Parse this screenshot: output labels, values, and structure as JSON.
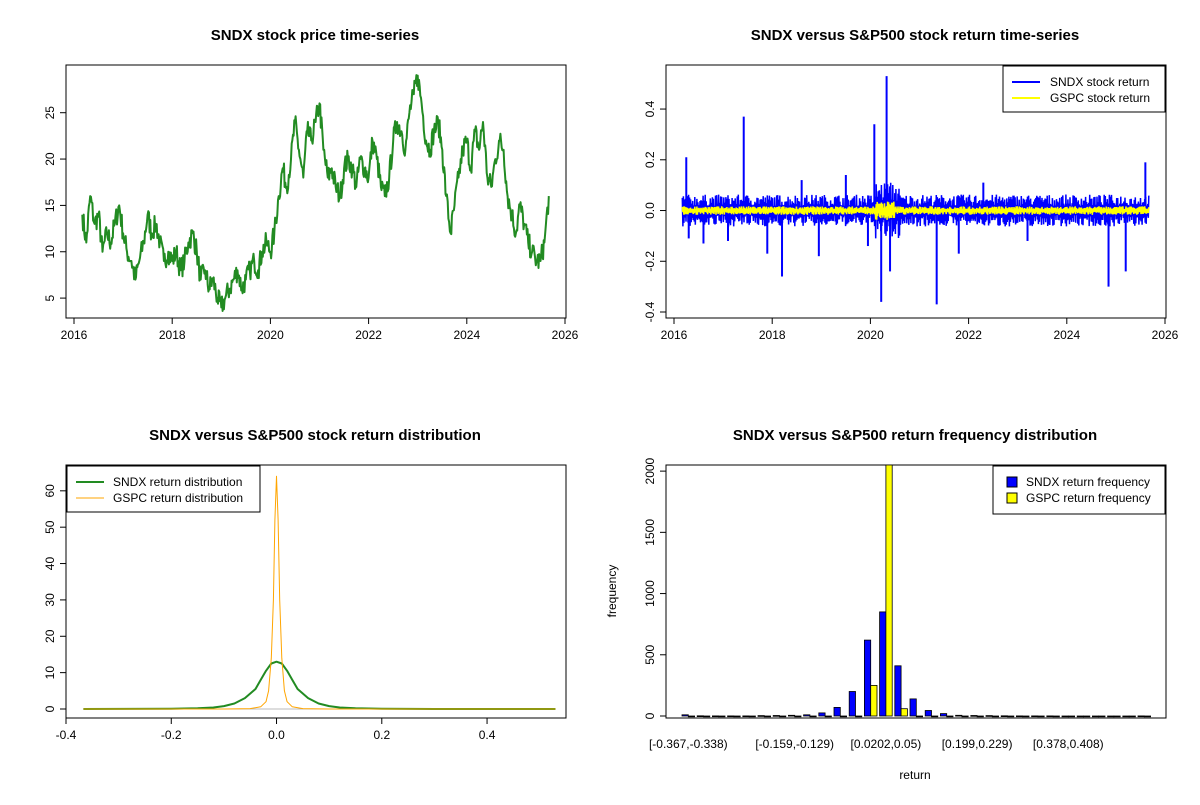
{
  "colors": {
    "price": "#228B22",
    "sndx": "#0000FF",
    "gspc": "#FFFF00",
    "sndx_density": "#228B22",
    "gspc_density": "#FFA500",
    "bar_outline": "#000000"
  },
  "chart_data": [
    {
      "type": "line",
      "title": "SNDX stock price time-series",
      "xlabel": "",
      "ylabel": "",
      "xlim": [
        2016,
        2026
      ],
      "ylim": [
        3.5,
        29.5
      ],
      "x_ticks": [
        "2016",
        "2018",
        "2020",
        "2022",
        "2024",
        "2026"
      ],
      "y_ticks": [
        "5",
        "10",
        "15",
        "20",
        "25"
      ],
      "series": [
        {
          "color": "#228B22",
          "x": [
            2016.17,
            2016.25,
            2016.33,
            2016.42,
            2016.5,
            2016.58,
            2016.67,
            2016.75,
            2016.83,
            2016.92,
            2017.0,
            2017.08,
            2017.17,
            2017.25,
            2017.33,
            2017.42,
            2017.5,
            2017.58,
            2017.67,
            2017.75,
            2017.83,
            2017.92,
            2018.0,
            2018.08,
            2018.17,
            2018.25,
            2018.33,
            2018.42,
            2018.5,
            2018.58,
            2018.67,
            2018.75,
            2018.83,
            2018.92,
            2019.0,
            2019.08,
            2019.17,
            2019.25,
            2019.33,
            2019.42,
            2019.5,
            2019.58,
            2019.67,
            2019.75,
            2019.83,
            2019.92,
            2020.0,
            2020.08,
            2020.17,
            2020.25,
            2020.33,
            2020.42,
            2020.5,
            2020.58,
            2020.67,
            2020.75,
            2020.83,
            2020.92,
            2021.0,
            2021.08,
            2021.17,
            2021.25,
            2021.33,
            2021.42,
            2021.5,
            2021.58,
            2021.67,
            2021.75,
            2021.83,
            2021.92,
            2022.0,
            2022.08,
            2022.17,
            2022.25,
            2022.33,
            2022.42,
            2022.5,
            2022.58,
            2022.67,
            2022.75,
            2022.83,
            2022.92,
            2023.0,
            2023.08,
            2023.17,
            2023.25,
            2023.33,
            2023.42,
            2023.5,
            2023.58,
            2023.67,
            2023.75,
            2023.83,
            2023.92,
            2024.0,
            2024.08,
            2024.17,
            2024.25,
            2024.33,
            2024.42,
            2024.5,
            2024.58,
            2024.67,
            2024.75,
            2024.83,
            2024.92,
            2025.0,
            2025.08,
            2025.17,
            2025.25,
            2025.33,
            2025.42,
            2025.5,
            2025.58,
            2025.67
          ],
          "y": [
            14,
            11,
            16,
            13,
            14,
            10,
            12,
            11,
            13,
            15,
            12,
            10,
            9,
            7,
            9,
            11,
            14,
            12,
            13,
            11,
            9,
            10,
            9,
            10,
            8,
            9,
            11,
            12,
            10,
            7,
            8,
            6,
            7,
            5,
            4,
            5,
            6,
            7,
            8,
            6,
            7,
            8,
            9,
            8,
            10,
            11,
            10,
            12,
            16,
            19,
            17,
            20,
            24,
            21,
            18,
            23,
            22,
            24,
            26,
            21,
            18,
            19,
            17,
            16,
            19,
            20,
            19,
            17,
            20,
            19,
            18,
            22,
            20,
            17,
            16,
            18,
            22,
            24,
            23,
            21,
            25,
            27,
            29,
            26,
            22,
            21,
            23,
            24,
            21,
            16,
            12,
            15,
            18,
            21,
            22,
            19,
            23,
            21,
            24,
            18,
            17,
            20,
            22,
            21,
            16,
            14,
            12,
            15,
            13,
            11,
            10,
            9,
            9,
            11,
            16
          ]
        }
      ]
    },
    {
      "type": "line",
      "title": "SNDX versus S&P500 stock return time-series",
      "xlabel": "",
      "ylabel": "",
      "xlim": [
        2016,
        2026
      ],
      "ylim": [
        -0.4,
        0.55
      ],
      "x_ticks": [
        "2016",
        "2018",
        "2020",
        "2022",
        "2024",
        "2026"
      ],
      "y_ticks": [
        "-0.4",
        "-0.2",
        "0.0",
        "0.2",
        "0.4"
      ],
      "legend_position": "top-right",
      "series": [
        {
          "name": "SNDX stock return",
          "color": "#0000FF",
          "band": 0.045,
          "x_range": [
            2016.17,
            2025.67
          ]
        },
        {
          "name": "GSPC stock return",
          "color": "#FFFF00",
          "band": 0.012,
          "x_range": [
            2016.17,
            2025.67
          ]
        }
      ],
      "spikes": [
        {
          "x": 2016.25,
          "y": 0.21
        },
        {
          "x": 2016.3,
          "y": -0.11
        },
        {
          "x": 2016.6,
          "y": -0.13
        },
        {
          "x": 2017.1,
          "y": -0.12
        },
        {
          "x": 2017.42,
          "y": 0.37
        },
        {
          "x": 2017.9,
          "y": -0.17
        },
        {
          "x": 2018.2,
          "y": -0.26
        },
        {
          "x": 2018.6,
          "y": 0.12
        },
        {
          "x": 2018.95,
          "y": -0.18
        },
        {
          "x": 2019.5,
          "y": 0.14
        },
        {
          "x": 2019.95,
          "y": -0.14
        },
        {
          "x": 2020.08,
          "y": 0.34
        },
        {
          "x": 2020.22,
          "y": -0.36
        },
        {
          "x": 2020.33,
          "y": 0.53
        },
        {
          "x": 2020.4,
          "y": -0.24
        },
        {
          "x": 2021.35,
          "y": -0.37
        },
        {
          "x": 2021.8,
          "y": -0.17
        },
        {
          "x": 2022.3,
          "y": 0.11
        },
        {
          "x": 2023.2,
          "y": -0.12
        },
        {
          "x": 2024.85,
          "y": -0.3
        },
        {
          "x": 2025.2,
          "y": -0.24
        },
        {
          "x": 2025.6,
          "y": 0.19
        }
      ]
    },
    {
      "type": "line",
      "title": "SNDX versus S&P500 stock return distribution",
      "xlabel": "",
      "ylabel": "",
      "xlim": [
        -0.4,
        0.55
      ],
      "ylim": [
        -1,
        66
      ],
      "x_ticks": [
        "-0.4",
        "-0.2",
        "0.0",
        "0.2",
        "0.4"
      ],
      "y_ticks": [
        "0",
        "10",
        "20",
        "30",
        "40",
        "50",
        "60"
      ],
      "legend_position": "top-left",
      "series": [
        {
          "name": "SNDX return distribution",
          "color": "#228B22",
          "x": [
            -0.367,
            -0.2,
            -0.15,
            -0.12,
            -0.1,
            -0.08,
            -0.06,
            -0.04,
            -0.03,
            -0.02,
            -0.01,
            0,
            0.01,
            0.02,
            0.03,
            0.04,
            0.06,
            0.08,
            0.1,
            0.12,
            0.15,
            0.2,
            0.3,
            0.4,
            0.53
          ],
          "y": [
            0,
            0.05,
            0.2,
            0.4,
            0.8,
            1.5,
            3,
            5.5,
            8,
            10.5,
            12.5,
            13,
            12.5,
            10.5,
            8,
            5.5,
            3,
            1.5,
            0.8,
            0.4,
            0.2,
            0.05,
            0,
            0,
            0
          ]
        },
        {
          "name": "GSPC return distribution",
          "color": "#FFA500",
          "x": [
            -0.367,
            -0.1,
            -0.05,
            -0.03,
            -0.02,
            -0.015,
            -0.01,
            -0.006,
            -0.003,
            0,
            0.003,
            0.006,
            0.01,
            0.015,
            0.02,
            0.03,
            0.05,
            0.1,
            0.53
          ],
          "y": [
            0,
            0,
            0.1,
            0.6,
            2,
            5,
            14,
            30,
            52,
            64,
            52,
            30,
            14,
            5,
            2,
            0.6,
            0.1,
            0,
            0
          ]
        }
      ]
    },
    {
      "type": "bar",
      "title": "SNDX versus S&P500 return frequency distribution",
      "xlabel": "return",
      "ylabel": "frequency",
      "ylim": [
        0,
        2050
      ],
      "y_ticks": [
        "0",
        "500",
        "1000",
        "1500",
        "2000"
      ],
      "legend_position": "top-right",
      "x_tick_labels": [
        "[-0.367,-0.338)",
        "[-0.159,-0.129)",
        "[0.0202,0.05)",
        "[0.199,0.229)",
        "[0.378,0.408)"
      ],
      "x_tick_bins": [
        0,
        7,
        13,
        19,
        25
      ],
      "categories_count": 31,
      "series": [
        {
          "name": "SNDX return frequency",
          "color": "#0000FF",
          "values": [
            10,
            2,
            1,
            1,
            1,
            3,
            4,
            6,
            10,
            25,
            70,
            200,
            620,
            850,
            410,
            140,
            45,
            20,
            6,
            4,
            3,
            2,
            1,
            1,
            1,
            0,
            0,
            0,
            0,
            0,
            1
          ]
        },
        {
          "name": "GSPC return frequency",
          "color": "#FFFF00",
          "values": [
            0,
            0,
            0,
            0,
            0,
            0,
            0,
            0,
            0,
            0,
            0,
            0,
            250,
            2050,
            60,
            0,
            0,
            0,
            0,
            0,
            0,
            0,
            0,
            0,
            0,
            0,
            0,
            0,
            0,
            0,
            0
          ]
        }
      ]
    }
  ]
}
